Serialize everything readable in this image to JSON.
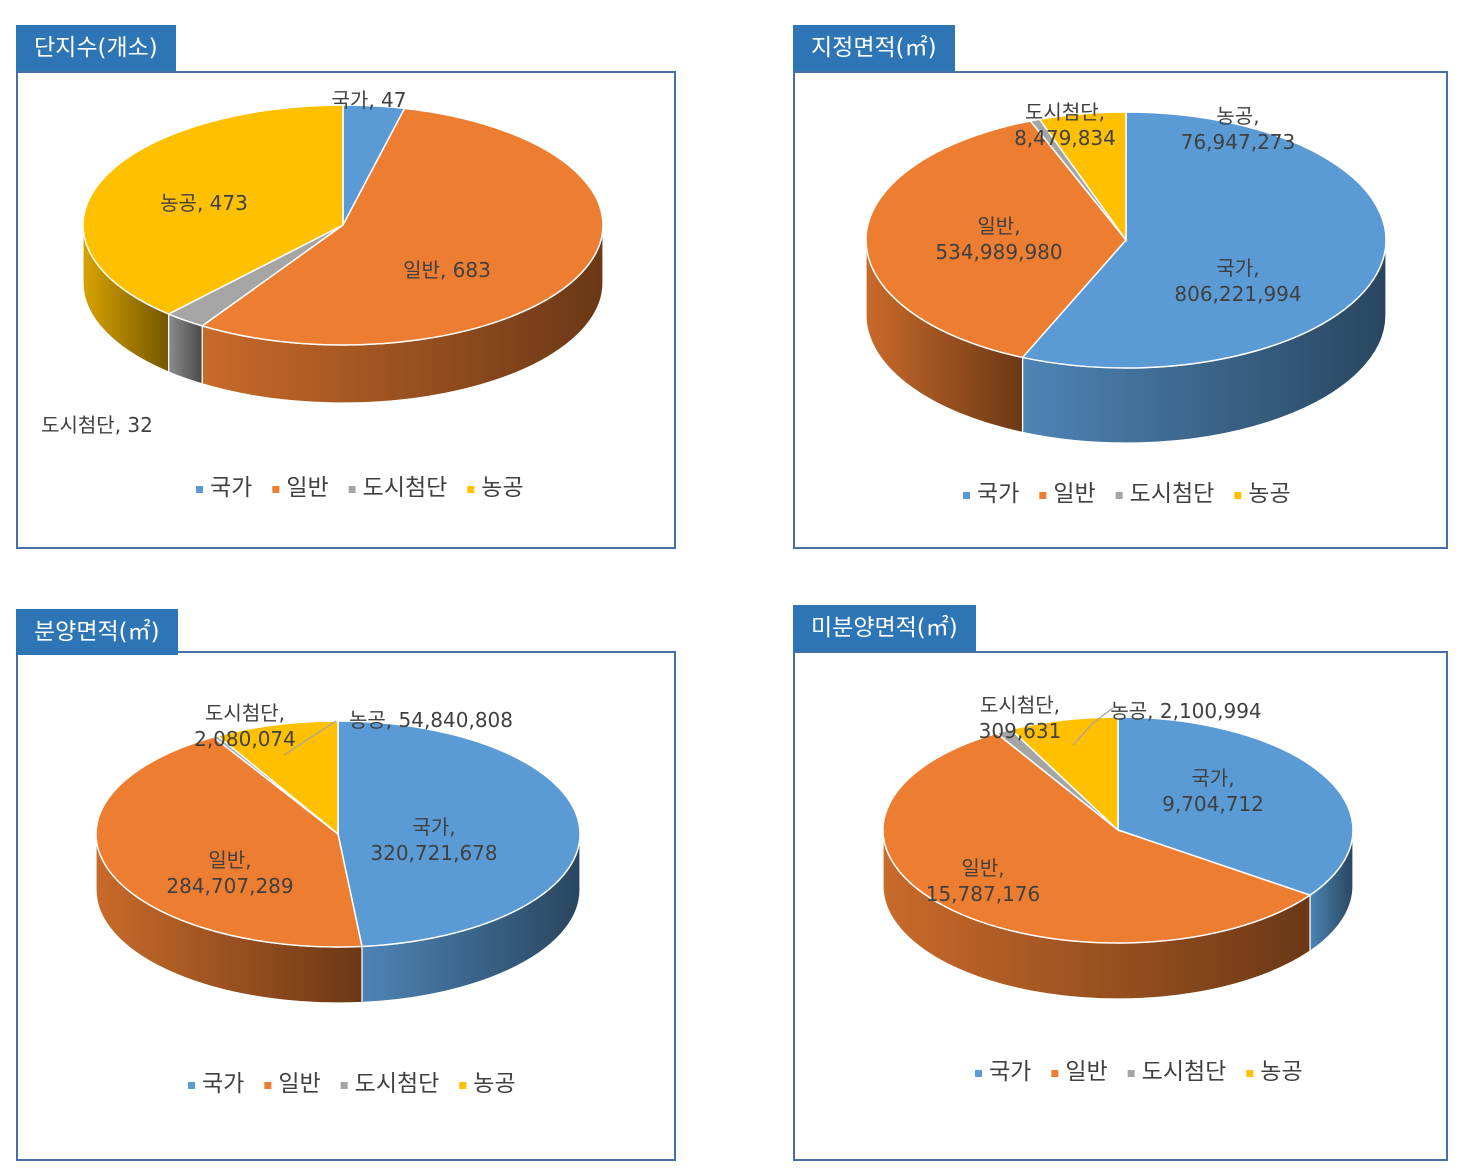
{
  "colors": {
    "국가": "#5b9bd5",
    "일반": "#ed7d31",
    "도시첨단": "#a5a5a5",
    "농공": "#ffc000",
    "tab": "#2e75b6",
    "border": "#4472a8"
  },
  "legend": [
    "국가",
    "일반",
    "도시첨단",
    "농공"
  ],
  "chart_data": [
    {
      "type": "pie",
      "title": "단지수(개소)",
      "slices": [
        {
          "category": "국가",
          "value": 47,
          "label_lines": [
            "국가, 47"
          ]
        },
        {
          "category": "일반",
          "value": 683,
          "label_lines": [
            "일반, 683"
          ]
        },
        {
          "category": "도시첨단",
          "value": 32,
          "label_lines": [
            "도시첨단, 32"
          ]
        },
        {
          "category": "농공",
          "value": 473,
          "label_lines": [
            "농공, 473"
          ]
        }
      ]
    },
    {
      "type": "pie",
      "title": "지정면적(㎡)",
      "slices": [
        {
          "category": "국가",
          "value": 806221994,
          "label_lines": [
            "국가,",
            "806,221,994"
          ]
        },
        {
          "category": "일반",
          "value": 534989980,
          "label_lines": [
            "일반,",
            "534,989,980"
          ]
        },
        {
          "category": "도시첨단",
          "value": 8479834,
          "label_lines": [
            "도시첨단,",
            "8,479,834"
          ]
        },
        {
          "category": "농공",
          "value": 76947273,
          "label_lines": [
            "농공,",
            "76,947,273"
          ]
        }
      ]
    },
    {
      "type": "pie",
      "title": "분양면적(㎡)",
      "slices": [
        {
          "category": "국가",
          "value": 320721678,
          "label_lines": [
            "국가,",
            "320,721,678"
          ]
        },
        {
          "category": "일반",
          "value": 284707289,
          "label_lines": [
            "일반,",
            "284,707,289"
          ]
        },
        {
          "category": "도시첨단",
          "value": 2080074,
          "label_lines": [
            "도시첨단,",
            "2,080,074"
          ]
        },
        {
          "category": "농공",
          "value": 54840808,
          "label_lines": [
            "농공, 54,840,808"
          ]
        }
      ]
    },
    {
      "type": "pie",
      "title": "미분양면적(㎡)",
      "slices": [
        {
          "category": "국가",
          "value": 9704712,
          "label_lines": [
            "국가,",
            "9,704,712"
          ]
        },
        {
          "category": "일반",
          "value": 15787176,
          "label_lines": [
            "일반,",
            "15,787,176"
          ]
        },
        {
          "category": "도시첨단",
          "value": 309631,
          "label_lines": [
            "도시첨단,",
            "309,631"
          ]
        },
        {
          "category": "농공",
          "value": 2100994,
          "label_lines": [
            "농공, 2,100,994"
          ]
        }
      ]
    }
  ]
}
